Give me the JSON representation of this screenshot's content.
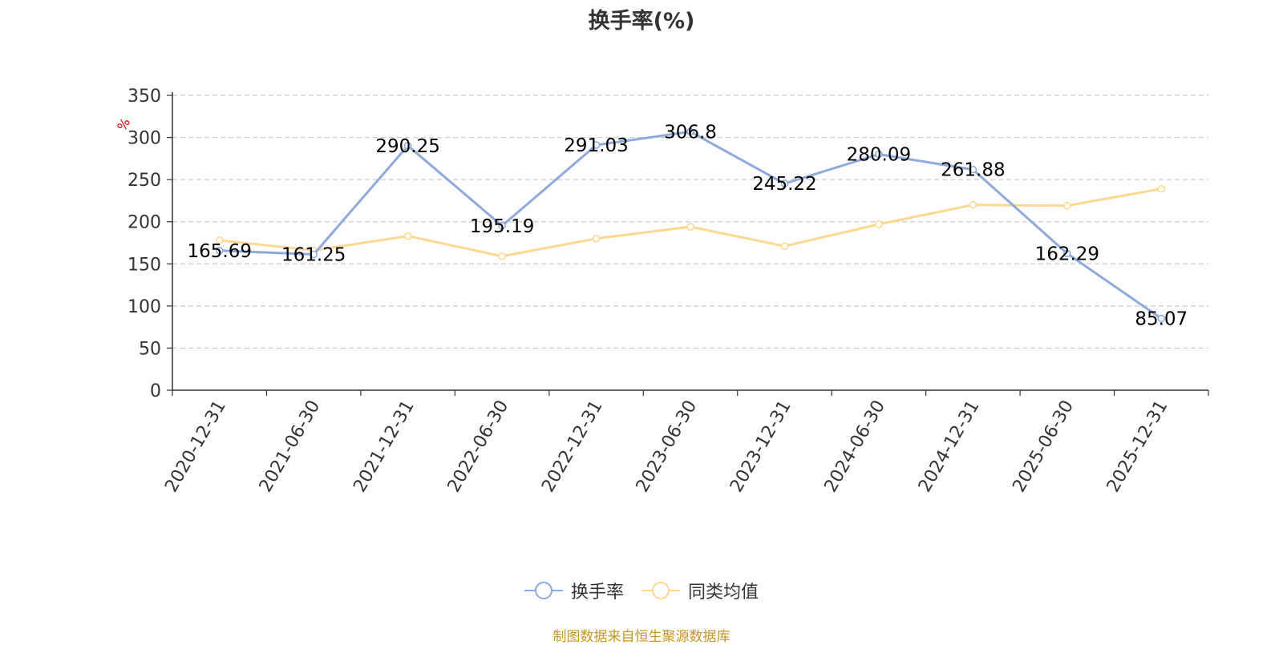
{
  "chart_data": {
    "type": "line",
    "title": "换手率(%)",
    "ylabel": "%",
    "ylim": [
      0,
      350
    ],
    "yticks": [
      0,
      50,
      100,
      150,
      200,
      250,
      300,
      350
    ],
    "categories": [
      "2020-12-31",
      "2021-06-30",
      "2021-12-31",
      "2022-06-30",
      "2022-12-31",
      "2023-06-30",
      "2023-12-31",
      "2024-06-30",
      "2024-12-31",
      "2025-06-30",
      "2025-12-31"
    ],
    "series": [
      {
        "name": "换手率",
        "color": "#8eaadb",
        "values": [
          165.69,
          161.25,
          290.25,
          195.19,
          291.03,
          306.8,
          245.22,
          280.09,
          261.88,
          162.29,
          85.07
        ],
        "labels": [
          "165.69",
          "161.25",
          "290.25",
          "195.19",
          "291.03",
          "306.8",
          "245.22",
          "280.09",
          "261.88",
          "162.29",
          "85.07"
        ]
      },
      {
        "name": "同类均值",
        "color": "#fdd891",
        "values": [
          178,
          166,
          183,
          159,
          180,
          194,
          171,
          197,
          220,
          219,
          239
        ]
      }
    ],
    "grid": true,
    "legend_position": "bottom-center"
  },
  "legend": {
    "item1": "换手率",
    "item2": "同类均值"
  },
  "source": "制图数据来自恒生聚源数据库"
}
